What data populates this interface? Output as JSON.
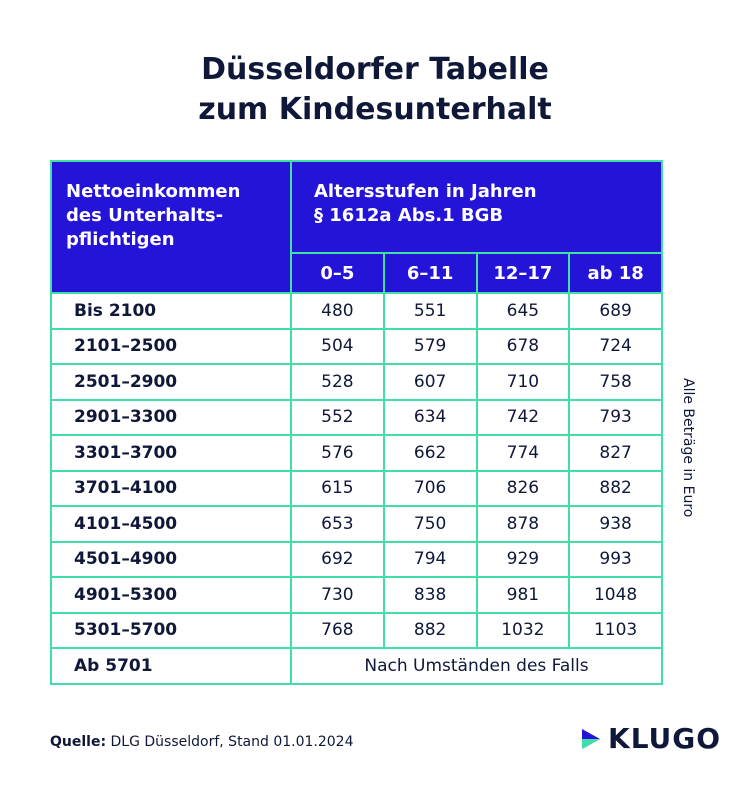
{
  "header": {
    "title": [
      "Düsseldorfer Tabelle",
      "zum Kindesunterhalt"
    ]
  },
  "table": {
    "corner": [
      "Nettoeinkommen",
      "des Unterhalts-",
      "pflichtigen"
    ],
    "group_header": [
      "Altersstufen in Jahren",
      "§ 1612a Abs.1 BGB"
    ],
    "columns": [
      "0–5",
      "6–11",
      "12–17",
      "ab 18"
    ],
    "rows": [
      {
        "label": "Bis 2100",
        "values": [
          480,
          551,
          645,
          689
        ]
      },
      {
        "label": "2101–2500",
        "values": [
          504,
          579,
          678,
          724
        ]
      },
      {
        "label": "2501–2900",
        "values": [
          528,
          607,
          710,
          758
        ]
      },
      {
        "label": "2901–3300",
        "values": [
          552,
          634,
          742,
          793
        ]
      },
      {
        "label": "3301–3700",
        "values": [
          576,
          662,
          774,
          827
        ]
      },
      {
        "label": "3701–4100",
        "values": [
          615,
          706,
          826,
          882
        ]
      },
      {
        "label": "4101–4500",
        "values": [
          653,
          750,
          878,
          938
        ]
      },
      {
        "label": "4501–4900",
        "values": [
          692,
          794,
          929,
          993
        ]
      },
      {
        "label": "4901–5300",
        "values": [
          730,
          838,
          981,
          1048
        ]
      },
      {
        "label": "5301–5700",
        "values": [
          768,
          882,
          1032,
          1103
        ]
      },
      {
        "label": "Ab 5701",
        "note": "Nach Umständen des Falls"
      }
    ]
  },
  "side_note": "Alle Beträge in Euro",
  "footer": {
    "source_label": "Quelle:",
    "source": "DLG Düsseldorf, Stand 01.01.2024",
    "logo": "KLUGO"
  }
}
